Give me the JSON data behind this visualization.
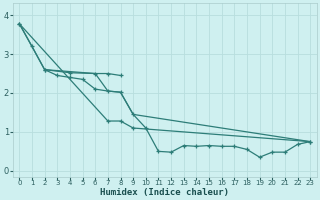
{
  "xlabel": "Humidex (Indice chaleur)",
  "bg_color": "#cff0f0",
  "line_color": "#2d7d78",
  "grid_color": "#b8dede",
  "xlim": [
    -0.5,
    23.5
  ],
  "ylim": [
    -0.15,
    4.3
  ],
  "xticks": [
    0,
    1,
    2,
    3,
    4,
    5,
    6,
    7,
    8,
    9,
    10,
    11,
    12,
    13,
    14,
    15,
    16,
    17,
    18,
    19,
    20,
    21,
    22,
    23
  ],
  "yticks": [
    0,
    1,
    2,
    3,
    4
  ],
  "series": [
    {
      "x": [
        0,
        1,
        2,
        3,
        4,
        5,
        6,
        7,
        8,
        9,
        10,
        11,
        12,
        13,
        14,
        15,
        16,
        17,
        18,
        19,
        20,
        21,
        22,
        23
      ],
      "y": [
        3.78,
        3.2,
        2.6,
        2.45,
        2.4,
        2.35,
        2.1,
        2.05,
        2.02,
        1.45,
        1.1,
        0.5,
        0.48,
        0.65,
        0.63,
        0.65,
        0.63,
        0.63,
        0.55,
        0.35,
        0.48,
        0.48,
        0.68,
        0.75
      ],
      "markers": true
    },
    {
      "x": [
        0,
        2,
        6,
        7,
        8,
        9,
        23
      ],
      "y": [
        3.78,
        2.6,
        2.5,
        2.05,
        2.02,
        1.45,
        0.75
      ],
      "markers": false
    },
    {
      "x": [
        2,
        4,
        6,
        7,
        8
      ],
      "y": [
        2.6,
        2.52,
        2.5,
        2.5,
        2.45
      ],
      "markers": true
    },
    {
      "x": [
        0,
        7,
        8,
        9,
        23
      ],
      "y": [
        3.78,
        1.28,
        1.28,
        1.1,
        0.75
      ],
      "markers": true
    }
  ]
}
